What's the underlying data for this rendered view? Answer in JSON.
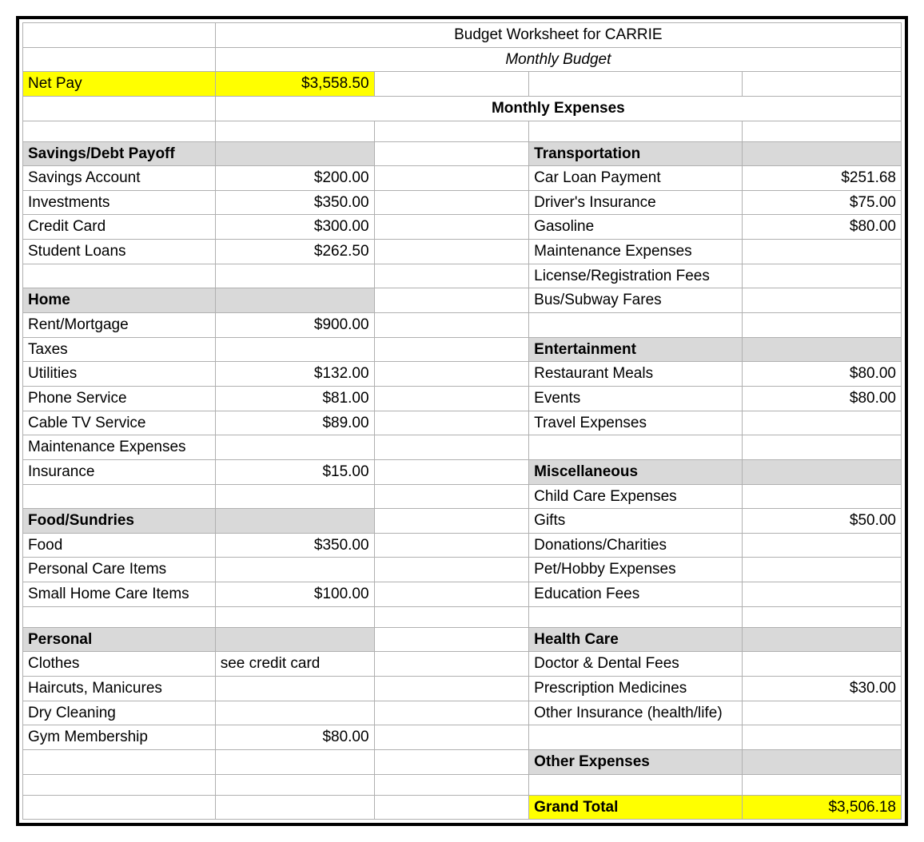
{
  "title": "Budget Worksheet for CARRIE",
  "subtitle": "Monthly Budget",
  "expenses_heading": "Monthly Expenses",
  "net_pay": {
    "label": "Net Pay",
    "value": "$3,558.50"
  },
  "colors": {
    "highlight": "#ffff00",
    "header_bg": "#d9d9d9",
    "grid": "#b0b0b0",
    "hard_border": "#000000",
    "background": "#ffffff",
    "text": "#000000"
  },
  "typography": {
    "font_family": "Arial",
    "title_size_pt": 20,
    "subtitle_size_pt": 15,
    "header_size_pt": 17,
    "body_size_pt": 15
  },
  "left_sections": [
    {
      "header": "Savings/Debt Payoff",
      "rows": [
        {
          "label": "Savings Account",
          "value": "$200.00"
        },
        {
          "label": "Investments",
          "value": "$350.00"
        },
        {
          "label": "Credit Card",
          "value": "$300.00"
        },
        {
          "label": "Student Loans",
          "value": "$262.50"
        }
      ]
    },
    {
      "header": "Home",
      "rows": [
        {
          "label": "Rent/Mortgage",
          "value": "$900.00"
        },
        {
          "label": "Taxes",
          "value": ""
        },
        {
          "label": "Utilities",
          "value": "$132.00"
        },
        {
          "label": "Phone Service",
          "value": "$81.00"
        },
        {
          "label": "Cable TV Service",
          "value": "$89.00"
        },
        {
          "label": "Maintenance Expenses",
          "value": ""
        },
        {
          "label": "Insurance",
          "value": "$15.00"
        }
      ]
    },
    {
      "header": "Food/Sundries",
      "rows": [
        {
          "label": "Food",
          "value": "$350.00"
        },
        {
          "label": "Personal Care Items",
          "value": ""
        },
        {
          "label": "Small Home Care Items",
          "value": "$100.00"
        }
      ]
    },
    {
      "header": "Personal",
      "rows": [
        {
          "label": "Clothes",
          "value": "see credit card",
          "align": "left"
        },
        {
          "label": "Haircuts, Manicures",
          "value": ""
        },
        {
          "label": "Dry Cleaning",
          "value": ""
        },
        {
          "label": "Gym Membership",
          "value": "$80.00"
        }
      ]
    }
  ],
  "right_sections": [
    {
      "header": "Transportation",
      "rows": [
        {
          "label": "Car Loan Payment",
          "value": "$251.68"
        },
        {
          "label": "Driver's Insurance",
          "value": "$75.00"
        },
        {
          "label": "Gasoline",
          "value": "$80.00"
        },
        {
          "label": "Maintenance Expenses",
          "value": ""
        },
        {
          "label": "License/Registration Fees",
          "value": ""
        },
        {
          "label": "Bus/Subway Fares",
          "value": ""
        }
      ]
    },
    {
      "header": "Entertainment",
      "rows": [
        {
          "label": "Restaurant Meals",
          "value": "$80.00"
        },
        {
          "label": "Events",
          "value": "$80.00"
        },
        {
          "label": "Travel Expenses",
          "value": ""
        }
      ]
    },
    {
      "header": "Miscellaneous",
      "rows": [
        {
          "label": "Child Care Expenses",
          "value": ""
        },
        {
          "label": "Gifts",
          "value": "$50.00"
        },
        {
          "label": "Donations/Charities",
          "value": ""
        },
        {
          "label": "Pet/Hobby Expenses",
          "value": ""
        },
        {
          "label": "Education Fees",
          "value": ""
        }
      ]
    },
    {
      "header": "Health Care",
      "rows": [
        {
          "label": "Doctor & Dental Fees",
          "value": ""
        },
        {
          "label": "Prescription Medicines",
          "value": "$30.00"
        },
        {
          "label": "Other Insurance (health/life)",
          "value": ""
        }
      ]
    },
    {
      "header": "Other Expenses",
      "rows": []
    }
  ],
  "grand_total": {
    "label": "Grand Total",
    "value": "$3,506.18"
  }
}
